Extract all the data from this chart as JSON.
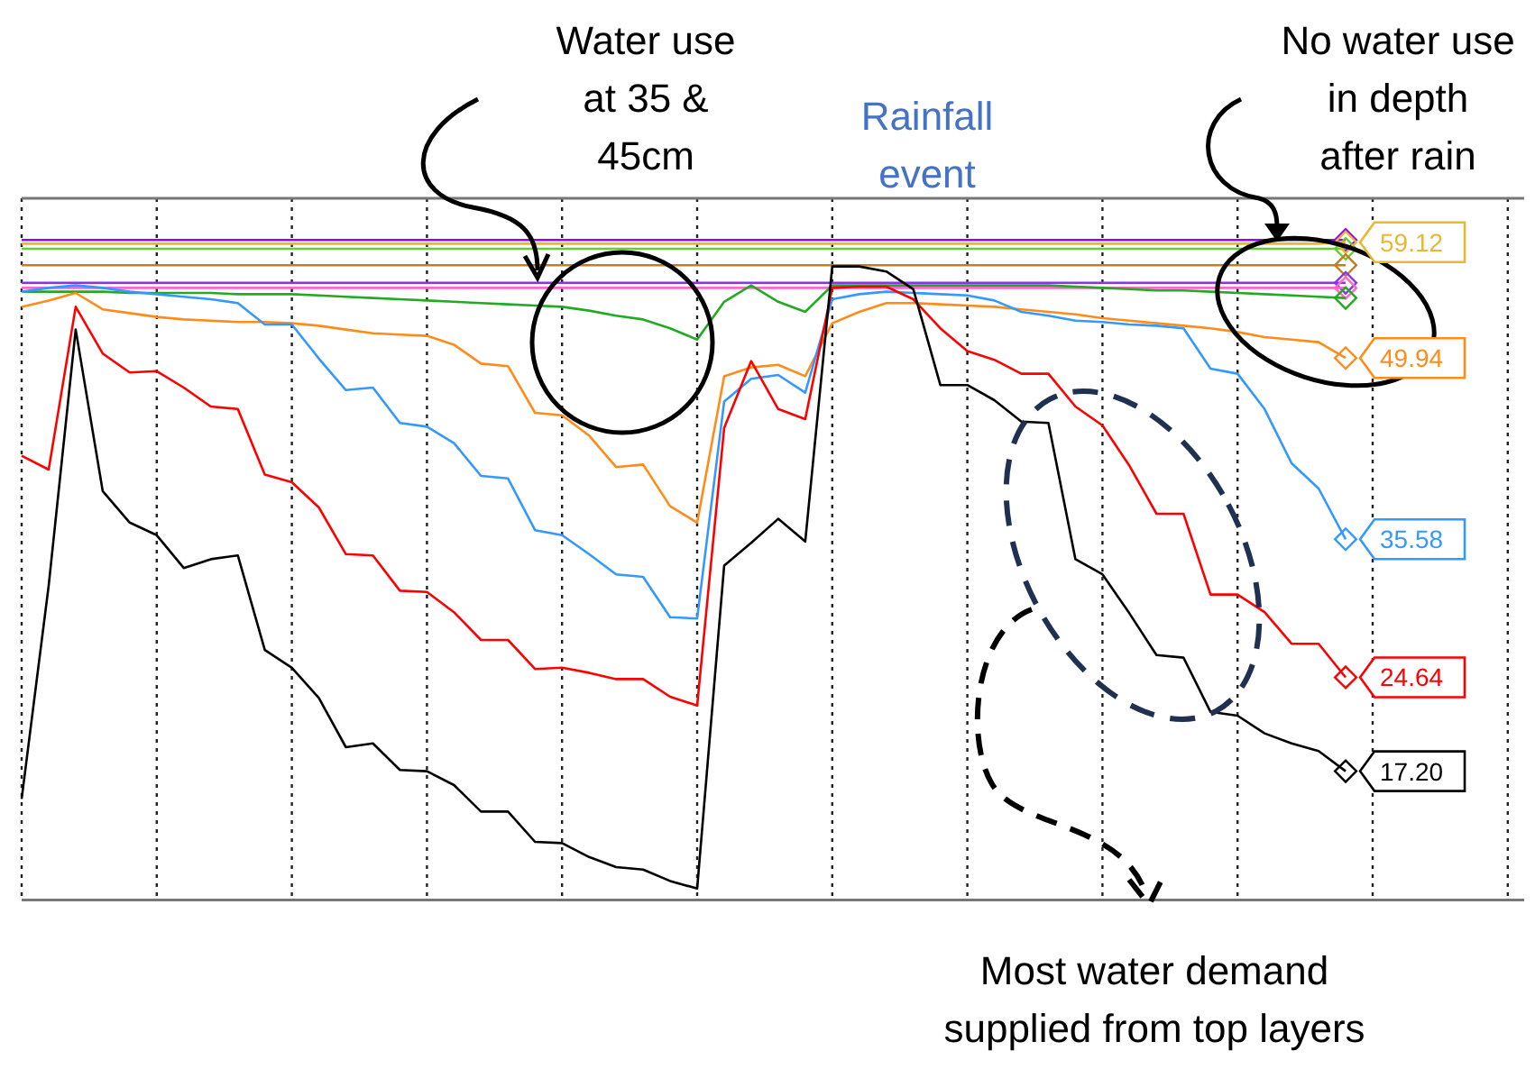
{
  "chart_data": {
    "type": "line",
    "ylim": [
      7,
      62.6
    ],
    "grid": "x",
    "line_style": "solid",
    "categories": [
      null,
      null,
      null,
      null,
      null,
      null,
      null,
      null,
      null,
      null,
      null,
      null,
      null,
      null,
      null,
      null,
      null,
      null,
      null,
      null,
      null,
      null,
      null,
      null,
      null,
      null,
      null,
      null,
      null,
      null,
      null,
      null,
      null,
      null,
      null,
      null,
      null,
      null,
      null,
      null,
      null,
      null,
      null,
      null,
      null,
      null,
      null,
      null,
      null,
      null
    ],
    "annotations": [
      "Water use at 35 & 45cm",
      "Rainfall event",
      "No water use in depth after rain",
      "Most water demand supplied from top layers"
    ],
    "series": [
      {
        "color": "#9900ff",
        "values": [
          59.3,
          59.3,
          59.3,
          59.3,
          59.3,
          59.3,
          59.3,
          59.3,
          59.3,
          59.3,
          59.3,
          59.3,
          59.3,
          59.3,
          59.3,
          59.3,
          59.3,
          59.3,
          59.3,
          59.3,
          59.3,
          59.3,
          59.3,
          59.3,
          59.3,
          59.3,
          59.3,
          59.3,
          59.3,
          59.3,
          59.3,
          59.3,
          59.3,
          59.3,
          59.3,
          59.3,
          59.3,
          59.3,
          59.3,
          59.3,
          59.3,
          59.3,
          59.3,
          59.3,
          59.3,
          59.3,
          59.3,
          59.3,
          59.3,
          59.3
        ]
      },
      {
        "color": "#66cc33",
        "values": [
          58.6,
          58.6,
          58.6,
          58.6,
          58.6,
          58.6,
          58.6,
          58.6,
          58.6,
          58.6,
          58.6,
          58.6,
          58.6,
          58.6,
          58.6,
          58.6,
          58.6,
          58.6,
          58.6,
          58.6,
          58.6,
          58.6,
          58.6,
          58.6,
          58.6,
          58.6,
          58.6,
          58.6,
          58.6,
          58.6,
          58.6,
          58.6,
          58.6,
          58.6,
          58.6,
          58.6,
          58.6,
          58.6,
          58.6,
          58.6,
          58.6,
          58.6,
          58.6,
          58.6,
          58.6,
          58.6,
          58.6,
          58.6,
          58.6,
          58.6
        ]
      },
      {
        "color": "#e8b830",
        "values": [
          59.0,
          59.0,
          59.0,
          59.0,
          59.0,
          59.0,
          59.0,
          59.0,
          59.0,
          59.0,
          59.0,
          59.0,
          59.0,
          59.0,
          59.0,
          59.0,
          59.0,
          59.0,
          59.0,
          59.0,
          59.0,
          59.0,
          59.0,
          59.0,
          59.0,
          59.0,
          59.0,
          59.0,
          59.0,
          59.0,
          59.0,
          59.0,
          59.0,
          59.0,
          59.0,
          59.0,
          59.0,
          59.0,
          59.0,
          59.0,
          59.0,
          59.0,
          59.0,
          59.0,
          59.0,
          59.0,
          59.0,
          59.0,
          59.0,
          59.12
        ],
        "value_labels": [
          null,
          null,
          null,
          null,
          null,
          null,
          null,
          null,
          null,
          null,
          null,
          null,
          null,
          null,
          null,
          null,
          null,
          null,
          null,
          null,
          null,
          null,
          null,
          null,
          null,
          null,
          null,
          null,
          null,
          null,
          null,
          null,
          null,
          null,
          null,
          null,
          null,
          null,
          null,
          null,
          null,
          null,
          null,
          null,
          null,
          null,
          null,
          null,
          null,
          "59.12"
        ]
      },
      {
        "color": "#c08020",
        "values": [
          57.3,
          57.3,
          57.3,
          57.3,
          57.3,
          57.3,
          57.3,
          57.3,
          57.3,
          57.3,
          57.3,
          57.3,
          57.3,
          57.3,
          57.3,
          57.3,
          57.3,
          57.3,
          57.3,
          57.3,
          57.3,
          57.3,
          57.3,
          57.3,
          57.3,
          57.3,
          57.3,
          57.3,
          57.3,
          57.3,
          57.3,
          57.3,
          57.3,
          57.3,
          57.3,
          57.3,
          57.3,
          57.3,
          57.3,
          57.3,
          57.3,
          57.3,
          57.3,
          57.3,
          57.3,
          57.3,
          57.3,
          57.3,
          57.3,
          57.3
        ]
      },
      {
        "color": "#8833ee",
        "values": [
          55.9,
          55.9,
          55.9,
          55.9,
          55.9,
          55.9,
          55.9,
          55.9,
          55.9,
          55.9,
          55.9,
          55.9,
          55.9,
          55.9,
          55.9,
          55.9,
          55.9,
          55.9,
          55.9,
          55.9,
          55.9,
          55.9,
          55.9,
          55.9,
          55.9,
          55.9,
          55.9,
          55.9,
          55.9,
          55.9,
          55.9,
          55.9,
          55.9,
          55.9,
          55.9,
          55.9,
          55.9,
          55.9,
          55.9,
          55.9,
          55.9,
          55.9,
          55.9,
          55.9,
          55.9,
          55.9,
          55.9,
          55.9,
          55.9,
          55.9
        ]
      },
      {
        "color": "#ff66cc",
        "values": [
          55.5,
          55.5,
          55.5,
          55.5,
          55.5,
          55.5,
          55.5,
          55.5,
          55.5,
          55.5,
          55.5,
          55.5,
          55.5,
          55.5,
          55.5,
          55.5,
          55.5,
          55.5,
          55.5,
          55.5,
          55.5,
          55.5,
          55.5,
          55.5,
          55.5,
          55.5,
          55.5,
          55.5,
          55.5,
          55.5,
          55.5,
          55.5,
          55.5,
          55.5,
          55.5,
          55.5,
          55.5,
          55.5,
          55.5,
          55.5,
          55.5,
          55.5,
          55.5,
          55.5,
          55.5,
          55.5,
          55.5,
          55.5,
          55.5,
          55.5
        ]
      },
      {
        "color": "#22aa22",
        "values": [
          55.2,
          55.2,
          55.2,
          55.2,
          55.1,
          55.1,
          55.1,
          55.1,
          55.0,
          55.0,
          55.0,
          54.9,
          54.8,
          54.7,
          54.6,
          54.5,
          54.4,
          54.3,
          54.2,
          54.1,
          54.0,
          53.7,
          53.3,
          53.0,
          52.3,
          51.4,
          54.4,
          55.7,
          54.4,
          53.6,
          55.7,
          55.7,
          55.7,
          55.7,
          55.7,
          55.7,
          55.7,
          55.7,
          55.7,
          55.6,
          55.5,
          55.4,
          55.3,
          55.3,
          55.2,
          55.1,
          55.0,
          54.9,
          54.8,
          54.7
        ]
      },
      {
        "color": "#ff8c1a",
        "values": [
          54.0,
          54.5,
          55.1,
          53.8,
          53.5,
          53.2,
          53.0,
          52.9,
          52.8,
          52.8,
          52.7,
          52.5,
          52.2,
          51.9,
          51.8,
          51.7,
          51.0,
          49.5,
          49.3,
          45.6,
          45.4,
          43.8,
          41.3,
          41.5,
          38.2,
          36.9,
          48.5,
          49.2,
          49.4,
          48.5,
          52.7,
          53.6,
          54.3,
          54.3,
          54.2,
          54.1,
          54.0,
          53.8,
          53.6,
          53.4,
          53.1,
          52.9,
          52.7,
          52.5,
          52.3,
          52.0,
          51.6,
          51.4,
          51.2,
          49.94
        ],
        "value_labels": [
          null,
          null,
          null,
          null,
          null,
          null,
          null,
          null,
          null,
          null,
          null,
          null,
          null,
          null,
          null,
          null,
          null,
          null,
          null,
          null,
          null,
          null,
          null,
          null,
          null,
          null,
          null,
          null,
          null,
          null,
          null,
          null,
          null,
          null,
          null,
          null,
          null,
          null,
          null,
          null,
          null,
          null,
          null,
          null,
          null,
          null,
          null,
          null,
          null,
          "49.94"
        ]
      },
      {
        "color": "#3399ff",
        "values": [
          55.2,
          55.5,
          55.7,
          55.5,
          55.2,
          55.0,
          54.8,
          54.6,
          54.3,
          52.6,
          52.6,
          49.9,
          47.4,
          47.6,
          44.8,
          44.5,
          43.2,
          40.6,
          40.4,
          36.3,
          35.9,
          34.4,
          32.8,
          32.6,
          29.4,
          29.3,
          46.5,
          48.3,
          48.6,
          47.2,
          54.6,
          55.0,
          55.2,
          55.1,
          55.0,
          54.9,
          54.5,
          53.6,
          53.3,
          52.9,
          52.8,
          52.6,
          52.5,
          52.3,
          49.1,
          48.7,
          45.9,
          41.6,
          39.6,
          35.58
        ],
        "value_labels": [
          null,
          null,
          null,
          null,
          null,
          null,
          null,
          null,
          null,
          null,
          null,
          null,
          null,
          null,
          null,
          null,
          null,
          null,
          null,
          null,
          null,
          null,
          null,
          null,
          null,
          null,
          null,
          null,
          null,
          null,
          null,
          null,
          null,
          null,
          null,
          null,
          null,
          null,
          null,
          null,
          null,
          null,
          null,
          null,
          null,
          null,
          null,
          null,
          null,
          "35.58"
        ]
      },
      {
        "color": "#ff0000",
        "values": [
          42.2,
          41.1,
          54.0,
          50.3,
          48.8,
          48.9,
          47.6,
          46.1,
          45.9,
          40.7,
          40.1,
          38.1,
          34.4,
          34.3,
          31.5,
          31.4,
          29.8,
          27.6,
          27.6,
          25.3,
          25.4,
          25.0,
          24.5,
          24.5,
          23.1,
          22.4,
          44.4,
          49.7,
          45.9,
          45.1,
          55.5,
          55.6,
          55.6,
          54.6,
          52.3,
          50.5,
          49.8,
          48.7,
          48.7,
          46.1,
          44.6,
          41.4,
          37.6,
          37.6,
          31.2,
          31.2,
          29.8,
          27.3,
          27.3,
          24.64
        ],
        "value_labels": [
          null,
          null,
          null,
          null,
          null,
          null,
          null,
          null,
          null,
          null,
          null,
          null,
          null,
          null,
          null,
          null,
          null,
          null,
          null,
          null,
          null,
          null,
          null,
          null,
          null,
          null,
          null,
          null,
          null,
          null,
          null,
          null,
          null,
          null,
          null,
          null,
          null,
          null,
          null,
          null,
          null,
          null,
          null,
          null,
          null,
          null,
          null,
          null,
          null,
          "24.64"
        ]
      },
      {
        "color": "#000000",
        "values": [
          15.0,
          31.9,
          52.2,
          39.4,
          36.9,
          35.9,
          33.3,
          34.0,
          34.3,
          26.8,
          25.4,
          23.0,
          19.1,
          19.4,
          17.3,
          17.2,
          16.1,
          14.0,
          14.0,
          11.6,
          11.5,
          10.4,
          9.6,
          9.4,
          8.5,
          7.9,
          33.5,
          35.3,
          37.2,
          35.4,
          57.2,
          57.2,
          56.8,
          55.4,
          47.8,
          47.8,
          46.6,
          44.9,
          44.8,
          34.0,
          32.8,
          29.7,
          26.4,
          26.2,
          21.9,
          21.6,
          20.2,
          19.4,
          18.8,
          17.2
        ],
        "value_labels": [
          null,
          null,
          null,
          null,
          null,
          null,
          null,
          null,
          null,
          null,
          null,
          null,
          null,
          null,
          null,
          null,
          null,
          null,
          null,
          null,
          null,
          null,
          null,
          null,
          null,
          null,
          null,
          null,
          null,
          null,
          null,
          null,
          null,
          null,
          null,
          null,
          null,
          null,
          null,
          null,
          null,
          null,
          null,
          null,
          null,
          null,
          null,
          null,
          null,
          "17.20"
        ]
      }
    ]
  }
}
